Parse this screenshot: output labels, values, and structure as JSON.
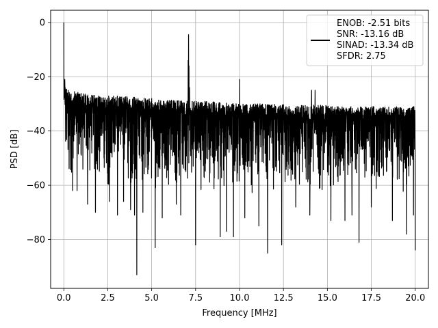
{
  "chart_data": {
    "type": "line",
    "title": "",
    "xlabel": "Frequency [MHz]",
    "ylabel": "PSD [dB]",
    "xlim": [
      -0.75,
      20.75
    ],
    "ylim": [
      -98,
      4.5
    ],
    "xticks": [
      0.0,
      2.5,
      5.0,
      7.5,
      10.0,
      12.5,
      15.0,
      17.5,
      20.0
    ],
    "xtick_labels": [
      "0.0",
      "2.5",
      "5.0",
      "7.5",
      "10.0",
      "12.5",
      "15.0",
      "17.5",
      "20.0"
    ],
    "yticks": [
      0,
      -20,
      -40,
      -60,
      -80
    ],
    "ytick_labels": [
      "0",
      "−20",
      "−40",
      "−60",
      "−80"
    ],
    "grid": true,
    "line_color": "#000000",
    "legend_position": "top-right",
    "legend_lines": [
      "ENOB: -2.51 bits",
      "SNR: -13.16 dB",
      "SINAD: -13.34 dB",
      "SFDR: 2.75"
    ],
    "series": [
      {
        "x_range": [
          0,
          20
        ],
        "noise_envelope": {
          "upper": [
            [
              0,
              -22
            ],
            [
              0.3,
              -25
            ],
            [
              1,
              -26
            ],
            [
              2,
              -27
            ],
            [
              3,
              -27
            ],
            [
              4,
              -27.5
            ],
            [
              5,
              -28
            ],
            [
              6,
              -28.5
            ],
            [
              7,
              -29
            ],
            [
              8,
              -29
            ],
            [
              9,
              -29.5
            ],
            [
              10,
              -30
            ],
            [
              11,
              -30
            ],
            [
              12,
              -30
            ],
            [
              13,
              -30.5
            ],
            [
              14,
              -30.5
            ],
            [
              15,
              -30.5
            ],
            [
              16,
              -31
            ],
            [
              17,
              -31
            ],
            [
              18,
              -31
            ],
            [
              19,
              -31
            ],
            [
              20,
              -31
            ]
          ],
          "lower": [
            [
              0,
              -50
            ],
            [
              0.3,
              -58
            ],
            [
              1,
              -60
            ],
            [
              2,
              -61
            ],
            [
              3,
              -62
            ],
            [
              4,
              -62
            ],
            [
              5,
              -62
            ],
            [
              6,
              -62
            ],
            [
              7,
              -63
            ],
            [
              8,
              -63
            ],
            [
              9,
              -63
            ],
            [
              10,
              -63
            ],
            [
              11,
              -63
            ],
            [
              12,
              -63
            ],
            [
              13,
              -63
            ],
            [
              14,
              -63
            ],
            [
              15,
              -63
            ],
            [
              16,
              -63
            ],
            [
              17,
              -63
            ],
            [
              18,
              -63
            ],
            [
              19,
              -63
            ],
            [
              20,
              -63
            ]
          ]
        },
        "peaks": [
          {
            "x": 0.0,
            "y": 0.0
          },
          {
            "x": 7.1,
            "y": -4.5
          },
          {
            "x": 10.0,
            "y": -21.0
          },
          {
            "x": 14.1,
            "y": -25.0
          },
          {
            "x": 14.3,
            "y": -25.0
          },
          {
            "x": 0.05,
            "y": -21.0
          }
        ],
        "dips": [
          {
            "x": 0.5,
            "y": -62
          },
          {
            "x": 0.75,
            "y": -62
          },
          {
            "x": 1.35,
            "y": -67
          },
          {
            "x": 1.8,
            "y": -70
          },
          {
            "x": 2.6,
            "y": -66
          },
          {
            "x": 3.05,
            "y": -71
          },
          {
            "x": 3.4,
            "y": -66
          },
          {
            "x": 3.8,
            "y": -69
          },
          {
            "x": 4.02,
            "y": -71
          },
          {
            "x": 4.15,
            "y": -93
          },
          {
            "x": 4.5,
            "y": -70
          },
          {
            "x": 5.2,
            "y": -83
          },
          {
            "x": 5.6,
            "y": -72
          },
          {
            "x": 6.4,
            "y": -67
          },
          {
            "x": 6.65,
            "y": -71
          },
          {
            "x": 7.5,
            "y": -82
          },
          {
            "x": 8.9,
            "y": -79
          },
          {
            "x": 9.25,
            "y": -77
          },
          {
            "x": 9.65,
            "y": -79
          },
          {
            "x": 10.3,
            "y": -72
          },
          {
            "x": 11.1,
            "y": -75
          },
          {
            "x": 11.6,
            "y": -85
          },
          {
            "x": 12.4,
            "y": -82
          },
          {
            "x": 13.2,
            "y": -68
          },
          {
            "x": 14.0,
            "y": -71
          },
          {
            "x": 15.2,
            "y": -73
          },
          {
            "x": 16.0,
            "y": -73
          },
          {
            "x": 16.4,
            "y": -71
          },
          {
            "x": 16.8,
            "y": -81
          },
          {
            "x": 17.5,
            "y": -68
          },
          {
            "x": 18.7,
            "y": -73
          },
          {
            "x": 19.5,
            "y": -78
          },
          {
            "x": 19.9,
            "y": -71
          },
          {
            "x": 20.0,
            "y": -84
          }
        ]
      }
    ]
  }
}
